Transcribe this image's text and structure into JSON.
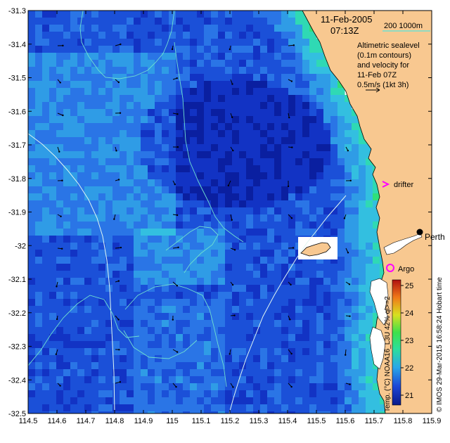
{
  "map": {
    "date": "11-Feb-2005",
    "time": "07:13Z",
    "isobath_legend": "200  1000m",
    "isobath_color": "#6fe0d0",
    "description_lines": [
      "Altimetric sealevel",
      "(0.1m contours)",
      "and velocity for",
      "11-Feb 07Z",
      "0.5m/s (1kt 3h)"
    ],
    "drifter_label": "drifter",
    "argo_label": "Argo",
    "city_label": "Perth",
    "credit": "© IMOS 29-Mar-2015 16:58:24 Hobart time",
    "colorbar_title": "Temp. (°C) NOAA16_L3U 42% ql>=2",
    "colorbar_ticks": [
      "25",
      "24",
      "23",
      "22",
      "21"
    ],
    "x_ticks": [
      "114.5",
      "114.6",
      "114.7",
      "114.8",
      "114.9",
      "115",
      "115.1",
      "115.2",
      "115.3",
      "115.4",
      "115.5",
      "115.6",
      "115.7",
      "115.8",
      "115.9"
    ],
    "y_ticks": [
      "-31.3",
      "-31.4",
      "-31.5",
      "-31.6",
      "-31.7",
      "-31.8",
      "-31.9",
      "-32",
      "-32.1",
      "-32.2",
      "-32.3",
      "-32.4",
      "-32.5"
    ],
    "colors": {
      "land": "#f8c890",
      "marker": "#ff00ff",
      "contour": "#6fe0d0"
    }
  }
}
